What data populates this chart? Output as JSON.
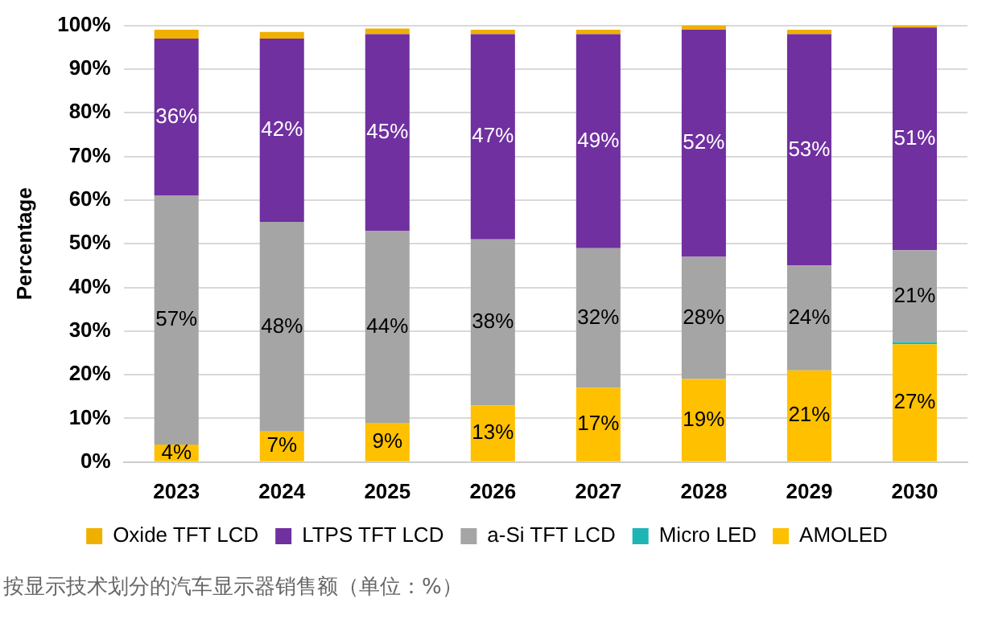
{
  "chart_data": {
    "type": "bar",
    "stacked": true,
    "ylabel": "Percentage",
    "categories": [
      "2023",
      "2024",
      "2025",
      "2026",
      "2027",
      "2028",
      "2029",
      "2030"
    ],
    "series": [
      {
        "name": "AMOLED",
        "color": "#ffc000",
        "values": [
          4,
          7,
          9,
          13,
          17,
          19,
          21,
          27
        ],
        "value_labels": [
          "4%",
          "7%",
          "9%",
          "13%",
          "17%",
          "19%",
          "21%",
          "27%"
        ]
      },
      {
        "name": "Micro LED",
        "color": "#1fb5b5",
        "values": [
          null,
          null,
          null,
          null,
          null,
          null,
          null,
          0.5
        ]
      },
      {
        "name": "a-Si TFT LCD",
        "color": "#a5a5a5",
        "values": [
          57,
          48,
          44,
          38,
          32,
          28,
          24,
          21
        ],
        "value_labels": [
          "57%",
          "48%",
          "44%",
          "38%",
          "32%",
          "28%",
          "24%",
          "21%"
        ]
      },
      {
        "name": "LTPS TFT LCD",
        "color": "#7030a0",
        "values": [
          36,
          42,
          45,
          47,
          49,
          52,
          53,
          51
        ],
        "value_labels": [
          "36%",
          "42%",
          "45%",
          "47%",
          "49%",
          "52%",
          "53%",
          "51%"
        ]
      },
      {
        "name": "Oxide TFT LCD",
        "color": "#f0b000",
        "values": [
          2,
          1.5,
          1.3,
          1,
          1,
          1,
          1,
          0.5
        ]
      }
    ],
    "ylim": [
      0,
      100
    ],
    "yticks": [
      {
        "value": 0,
        "label": "0%"
      },
      {
        "value": 10,
        "label": "10%"
      },
      {
        "value": 20,
        "label": "20%"
      },
      {
        "value": 30,
        "label": "30%"
      },
      {
        "value": 40,
        "label": "40%"
      },
      {
        "value": 50,
        "label": "50%"
      },
      {
        "value": 60,
        "label": "60%"
      },
      {
        "value": 70,
        "label": "70%"
      },
      {
        "value": 80,
        "label": "80%"
      },
      {
        "value": 90,
        "label": "90%"
      },
      {
        "value": 100,
        "label": "100%"
      }
    ],
    "grid": "y",
    "legend": "bottom",
    "annotations": [
      "按显示技术划分的汽车显示器销售额（单位：%）"
    ]
  }
}
